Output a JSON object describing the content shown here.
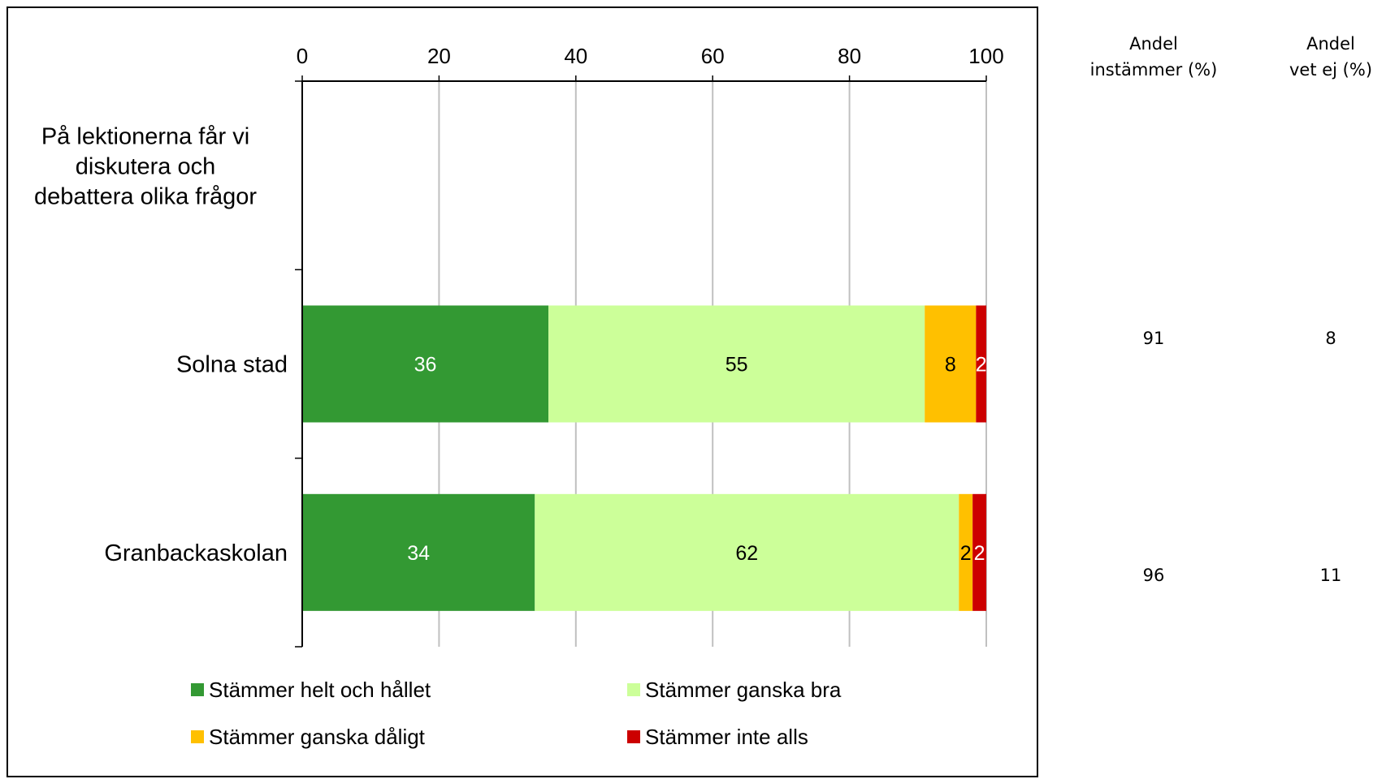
{
  "chart_data": {
    "type": "bar",
    "orientation": "horizontal",
    "stacked": true,
    "question": "På lektionerna får vi diskutera och debattera olika frågor",
    "categories": [
      "Solna stad",
      "Granbackaskolan"
    ],
    "series": [
      {
        "name": "Stämmer helt och hållet",
        "color": "#339933",
        "label_color": "#ffffff",
        "values": [
          36,
          34
        ],
        "labels": [
          "36",
          "34"
        ]
      },
      {
        "name": "Stämmer ganska bra",
        "color": "#ccff99",
        "label_color": "#000000",
        "values": [
          55,
          62
        ],
        "labels": [
          "55",
          "62"
        ]
      },
      {
        "name": "Stämmer ganska dåligt",
        "color": "#ffc000",
        "label_color": "#000000",
        "values": [
          7.5,
          2
        ],
        "labels": [
          "8",
          "2"
        ]
      },
      {
        "name": "Stämmer inte alls",
        "color": "#cc0000",
        "label_color": "#ffffff",
        "values": [
          1.5,
          2
        ],
        "labels": [
          "2",
          "2"
        ]
      }
    ],
    "xlim": [
      0,
      100
    ],
    "xticks": [
      "0",
      "20",
      "40",
      "60",
      "80",
      "100"
    ],
    "grid": true,
    "axis_position": "top",
    "legend_position": "bottom"
  },
  "side_table": {
    "headers": [
      {
        "line1": "Andel",
        "line2": "instämmer (%)"
      },
      {
        "line1": "Andel",
        "line2": "vet ej (%)"
      }
    ],
    "rows": [
      {
        "category": "Solna stad",
        "instammer": "91",
        "vet_ej": "8"
      },
      {
        "category": "Granbackaskolan",
        "instammer": "96",
        "vet_ej": "11"
      }
    ]
  }
}
